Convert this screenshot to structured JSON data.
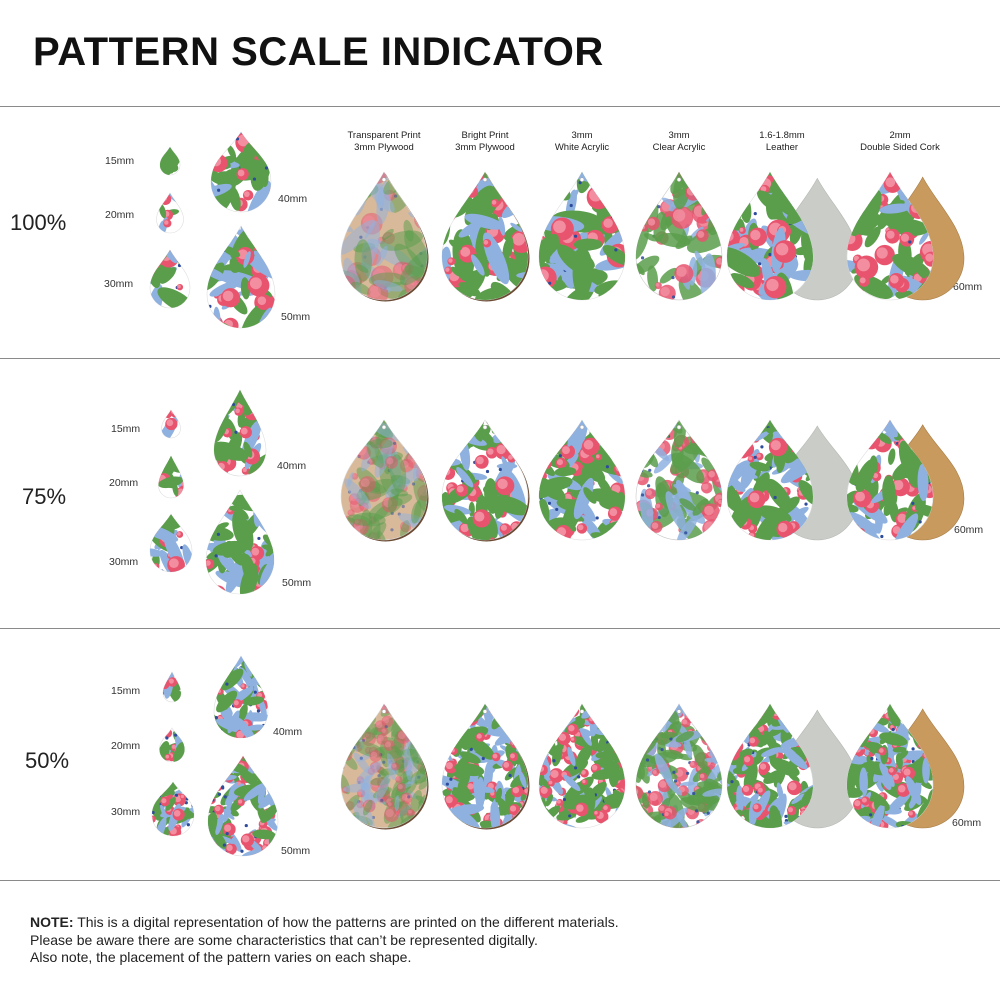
{
  "title": "PATTERN SCALE INDICATOR",
  "materials": [
    {
      "line1": "Transparent Print",
      "line2": "3mm Plywood",
      "kind": "plywood-transparent"
    },
    {
      "line1": "Bright Print",
      "line2": "3mm Plywood",
      "kind": "plywood-bright"
    },
    {
      "line1": "3mm",
      "line2": "White Acrylic",
      "kind": "white-acrylic"
    },
    {
      "line1": "3mm",
      "line2": "Clear Acrylic",
      "kind": "clear-acrylic"
    },
    {
      "line1": "1.6-1.8mm",
      "line2": "Leather",
      "kind": "leather"
    },
    {
      "line1": "2mm",
      "line2": "Double Sided Cork",
      "kind": "cork"
    }
  ],
  "rows": [
    {
      "scale": "100%",
      "size_labels": {
        "s15": "15mm",
        "s20": "20mm",
        "s30": "30mm",
        "s40": "40mm",
        "s50": "50mm",
        "s60": "60mm"
      }
    },
    {
      "scale": "75%",
      "size_labels": {
        "s15": "15mm",
        "s20": "20mm",
        "s30": "30mm",
        "s40": "40mm",
        "s50": "50mm",
        "s60": "60mm"
      }
    },
    {
      "scale": "50%",
      "size_labels": {
        "s15": "15mm",
        "s20": "20mm",
        "s30": "30mm",
        "s40": "40mm",
        "s50": "50mm",
        "s60": "60mm"
      }
    }
  ],
  "note": {
    "bold": "NOTE:",
    "line1": " This is a digital representation of how the patterns are printed on the different materials.",
    "line2": "Please be aware there are some characteristics that can’t be represented digitally.",
    "line3": "Also note, the placement of the pattern varies on each shape."
  },
  "colors": {
    "rose": "#e8546e",
    "rose_light": "#f28ea0",
    "leaf": "#5a9e4b",
    "leaf_light": "#8cc07a",
    "blue_leaf": "#8fb1e0",
    "berry": "#2e4c9c",
    "plywood": "#d8b99a",
    "plywood_edge": "#6b4a33",
    "leather_back": "#c9ccc7",
    "cork": "#c99a5e",
    "white": "#ffffff"
  }
}
